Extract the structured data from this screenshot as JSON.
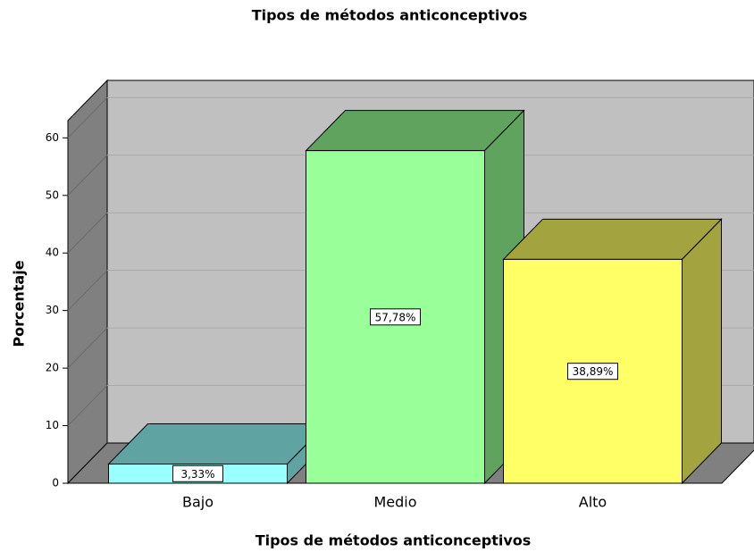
{
  "chart_data": {
    "type": "bar3d",
    "title": "Tipos de métodos anticonceptivos",
    "xlabel": "Tipos de métodos anticonceptivos",
    "ylabel": "Porcentaje",
    "categories": [
      "Bajo",
      "Medio",
      "Alto"
    ],
    "values": [
      3.33,
      57.78,
      38.89
    ],
    "value_labels": [
      "3,33%",
      "57,78%",
      "38,89%"
    ],
    "colors": [
      "#99ffff",
      "#99ff99",
      "#ffff66"
    ],
    "side_colors": [
      "#5fa3a3",
      "#5fa35f",
      "#a3a33f"
    ],
    "ylim": [
      0,
      63
    ],
    "yticks": [
      0,
      10,
      20,
      30,
      40,
      50,
      60
    ],
    "grid": true
  }
}
